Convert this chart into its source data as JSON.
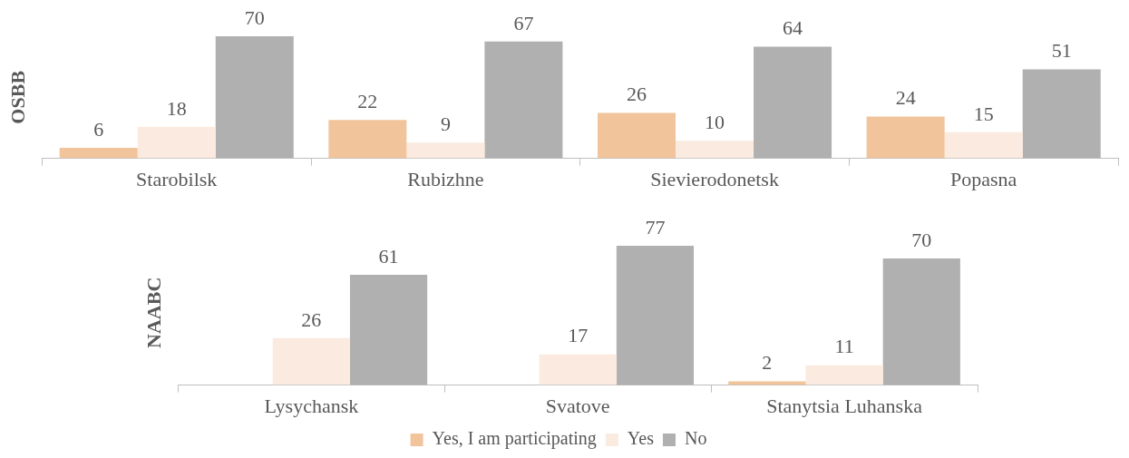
{
  "chart_data": [
    {
      "type": "bar",
      "ylabel": "OSBB",
      "categories": [
        "Starobilsk",
        "Rubizhne",
        "Sievierodonetsk",
        "Popasna"
      ],
      "data_labels": true,
      "series": [
        {
          "color": "#f2c49b",
          "values": [
            6,
            22,
            26,
            24
          ]
        },
        {
          "color": "#fbeadf",
          "values": [
            18,
            9,
            10,
            15
          ]
        },
        {
          "color": "#b0b0b0",
          "values": [
            70,
            67,
            64,
            51
          ]
        }
      ]
    },
    {
      "type": "bar",
      "ylabel": "NAABC",
      "categories": [
        "Lysychansk",
        "Svatove",
        "Stanytsia Luhanska"
      ],
      "data_labels": true,
      "legend": "bottom",
      "series": [
        {
          "name": "Yes, I am participating",
          "color": "#f2c49b",
          "values": [
            null,
            null,
            2
          ]
        },
        {
          "name": "Yes",
          "color": "#fbeadf",
          "values": [
            26,
            17,
            11
          ]
        },
        {
          "name": "No",
          "color": "#b0b0b0",
          "values": [
            61,
            77,
            70
          ]
        }
      ]
    }
  ]
}
